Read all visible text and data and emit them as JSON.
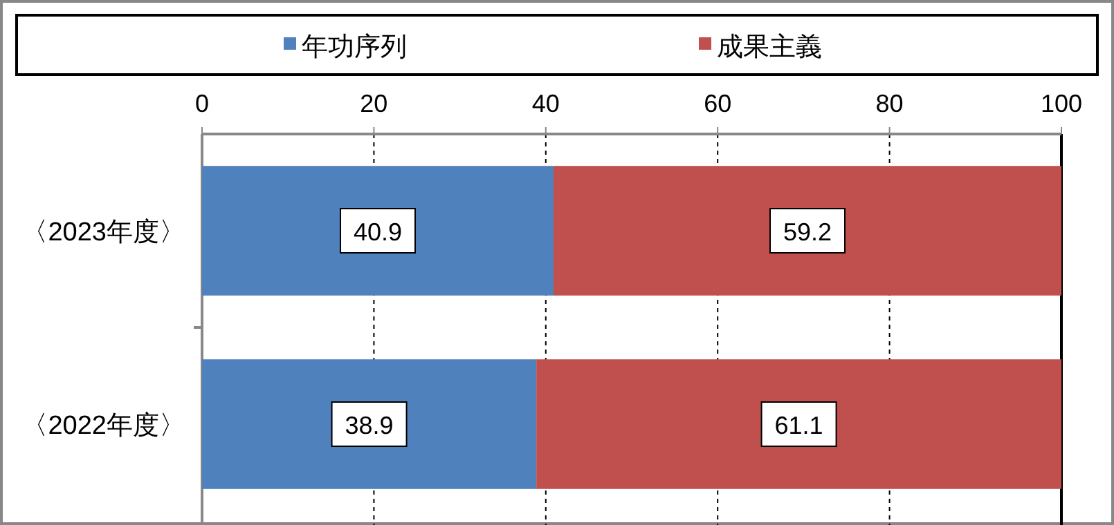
{
  "chart_data": {
    "type": "bar",
    "orientation": "horizontal",
    "stacked": true,
    "data_labels": true,
    "categories": [
      "〈2023年度〉",
      "〈2022年度〉"
    ],
    "series": [
      {
        "name": "年功序列",
        "color": "#4f81bd",
        "values": [
          40.9,
          38.9
        ]
      },
      {
        "name": "成果主義",
        "color": "#c0504d",
        "values": [
          59.2,
          61.1
        ]
      }
    ],
    "xlim": [
      0,
      100
    ],
    "xticks": [
      0,
      20,
      40,
      60,
      80,
      100
    ],
    "grid": "x",
    "line_style": "dashed",
    "legend": "top"
  }
}
